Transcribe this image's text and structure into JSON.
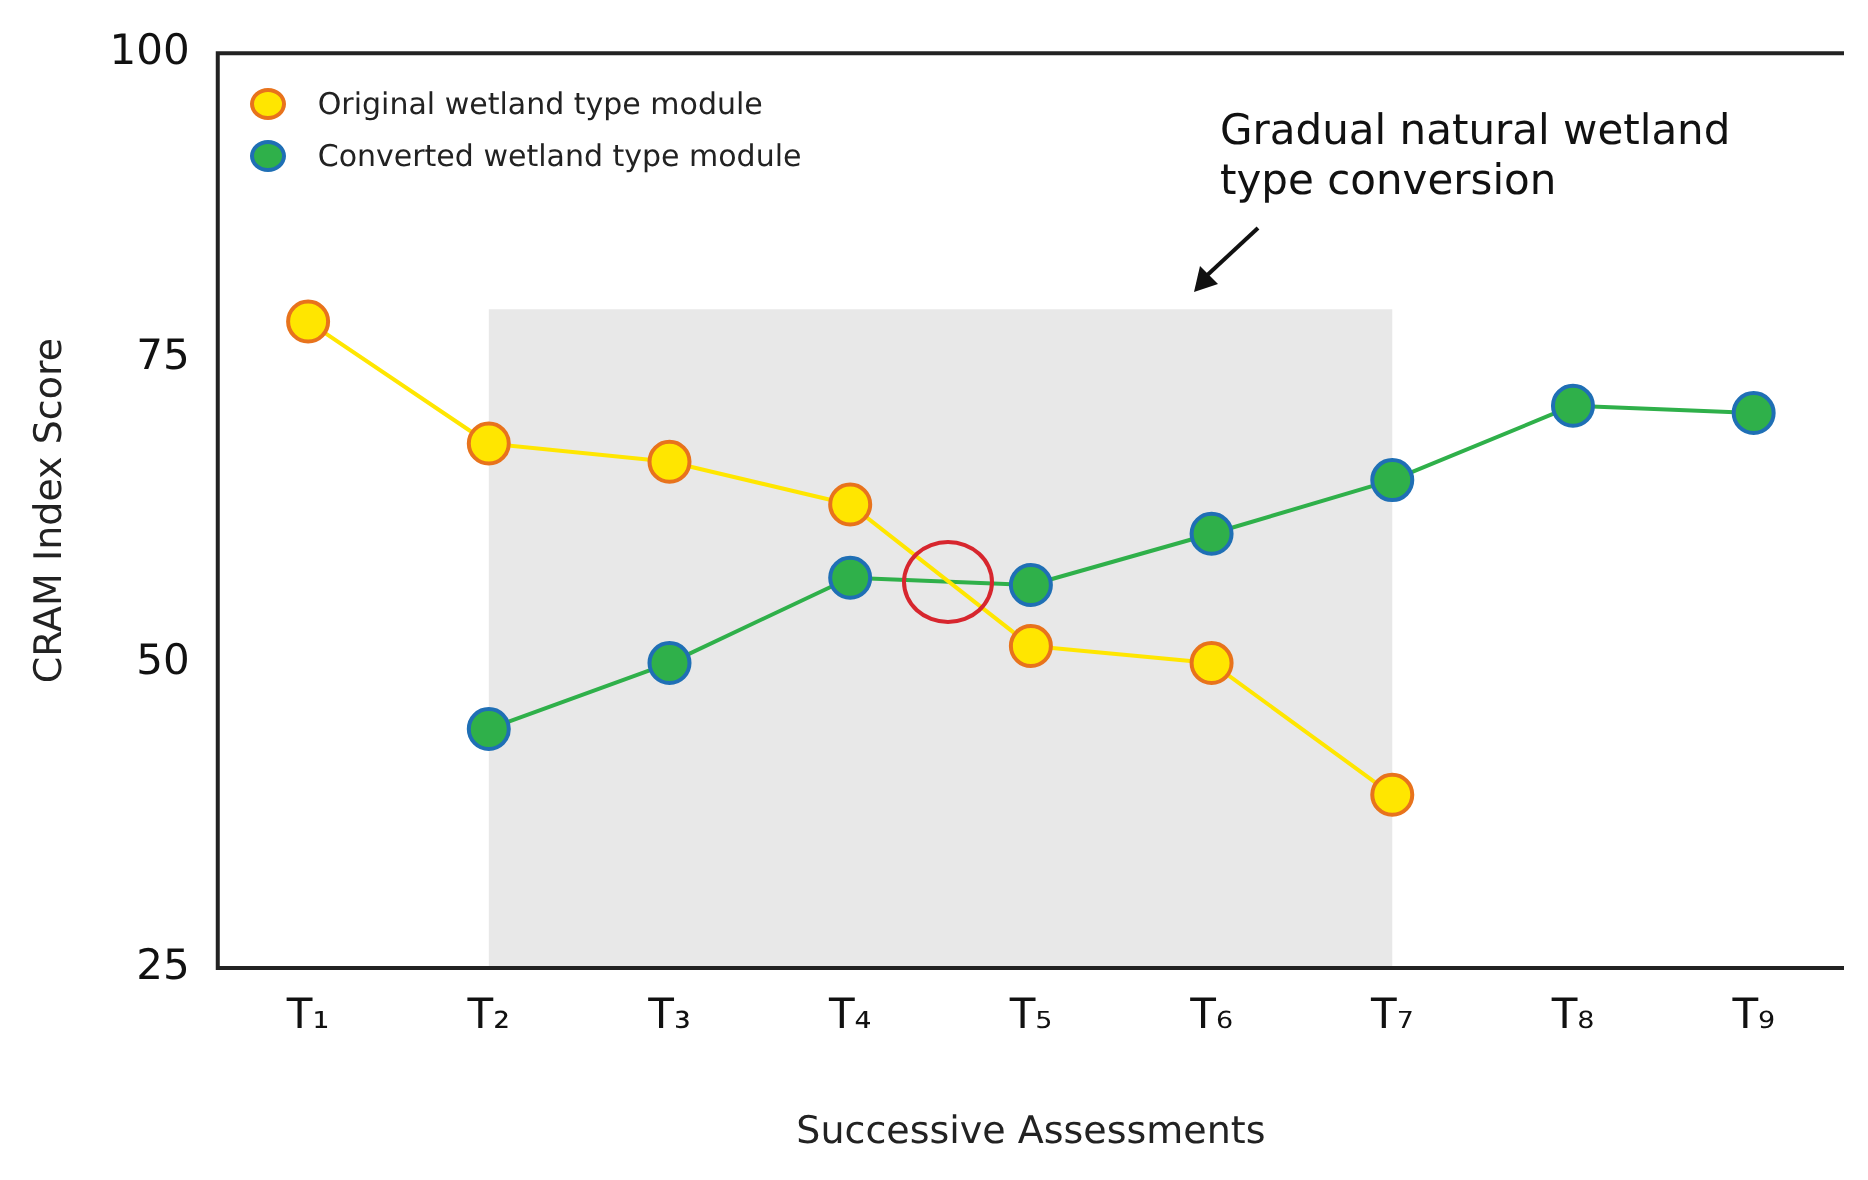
{
  "chart_data": {
    "type": "line",
    "xlabel": "Successive Assessments",
    "ylabel": "CRAM Index Score",
    "categories": [
      "T₁",
      "T₂",
      "T₃",
      "T₄",
      "T₅",
      "T₆",
      "T₇",
      "T₈",
      "T₉"
    ],
    "series": [
      {
        "name": "Original wetland type module",
        "color": "#ffe600",
        "values": [
          78,
          68,
          66.5,
          63,
          51.4,
          50,
          39.2,
          null,
          null
        ]
      },
      {
        "name": "Converted wetland type module",
        "color": "#2fb04a",
        "values": [
          null,
          44.6,
          50,
          57,
          56.4,
          60.6,
          65,
          71.1,
          70.5
        ]
      }
    ],
    "ylim": [
      25,
      100
    ],
    "yticks": [
      25,
      50,
      75,
      100
    ],
    "grid": false,
    "legend": "top left",
    "marker": "circle",
    "line_style": "solid",
    "bands": [
      {
        "axis": "x",
        "from": "T₂",
        "to": "T₇",
        "color": "#e8e8e8"
      }
    ],
    "annotations": [
      "Gradual natural wetland type conversion"
    ]
  }
}
